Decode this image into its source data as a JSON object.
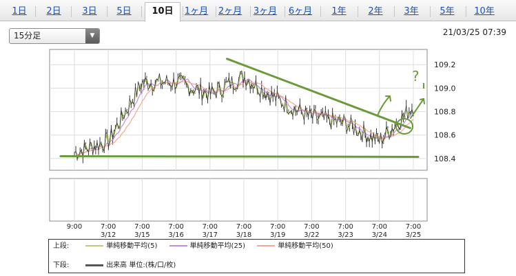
{
  "tabs": [
    {
      "label": "1日",
      "active": false
    },
    {
      "label": "2日",
      "active": false
    },
    {
      "label": "3日",
      "active": false
    },
    {
      "label": "5日",
      "active": false
    },
    {
      "label": "10日",
      "active": true
    },
    {
      "label": "1ヶ月",
      "active": false
    },
    {
      "label": "2ヶ月",
      "active": false
    },
    {
      "label": "3ヶ月",
      "active": false
    },
    {
      "label": "6ヶ月",
      "active": false
    },
    {
      "label": "1年",
      "active": false
    },
    {
      "label": "2年",
      "active": false
    },
    {
      "label": "3年",
      "active": false
    },
    {
      "label": "5年",
      "active": false
    },
    {
      "label": "10年",
      "active": false
    }
  ],
  "interval_select": {
    "value": "15分足"
  },
  "timestamp": "21/03/25 07:39",
  "legend": {
    "upper_label": "上段:",
    "lower_label": "下段:",
    "items": [
      {
        "name": "単純移動平均(5)",
        "color": "#b8d16a"
      },
      {
        "name": "単純移動平均(25)",
        "color": "#c48ae0"
      },
      {
        "name": "単純移動平均(50)",
        "color": "#f2a890"
      }
    ],
    "volume": "出来高 単位:(株/口/枚)"
  },
  "chart_data": {
    "type": "line",
    "series": [
      {
        "name": "",
        "x": [
          "9:00",
          "7:00 3/12",
          "7:00 3/15",
          "7:00 3/16",
          "7:00 3/17",
          "7:00 3/18",
          "7:00 3/19",
          "7:00 3/22",
          "7:00 3/23",
          "7:00 3/24",
          "7:00 3/25"
        ],
        "values": [
          108.45,
          108.55,
          109.05,
          109.05,
          108.95,
          109.1,
          108.9,
          108.75,
          108.7,
          108.55,
          108.85
        ]
      },
      {
        "name": "単純移動平均(5)",
        "color": "#b8d16a"
      },
      {
        "name": "単純移動平均(25)",
        "color": "#c48ae0"
      },
      {
        "name": "単純移動平均(50)",
        "color": "#f2a890"
      }
    ],
    "x_tick_labels": [
      {
        "time": "9:00",
        "date": ""
      },
      {
        "time": "7:00",
        "date": "3/12"
      },
      {
        "time": "7:00",
        "date": "3/15"
      },
      {
        "time": "7:00",
        "date": "3/16"
      },
      {
        "time": "7:00",
        "date": "3/17"
      },
      {
        "time": "7:00",
        "date": "3/18"
      },
      {
        "time": "7:00",
        "date": "3/19"
      },
      {
        "time": "7:00",
        "date": "3/22"
      },
      {
        "time": "7:00",
        "date": "3/23"
      },
      {
        "time": "7:00",
        "date": "3/24"
      },
      {
        "time": "7:00",
        "date": "3/25"
      }
    ],
    "y_ticks": [
      108.4,
      108.6,
      108.8,
      109.0,
      109.2
    ],
    "ylim": [
      108.3,
      109.33
    ],
    "price_color": "#333333",
    "grid": true,
    "annotations": {
      "support_level": 108.42,
      "resistance_from": {
        "x_frac": 0.47,
        "y": 109.25
      },
      "resistance_to": {
        "x_frac": 0.955,
        "y": 108.66
      },
      "question_text": "?"
    }
  }
}
